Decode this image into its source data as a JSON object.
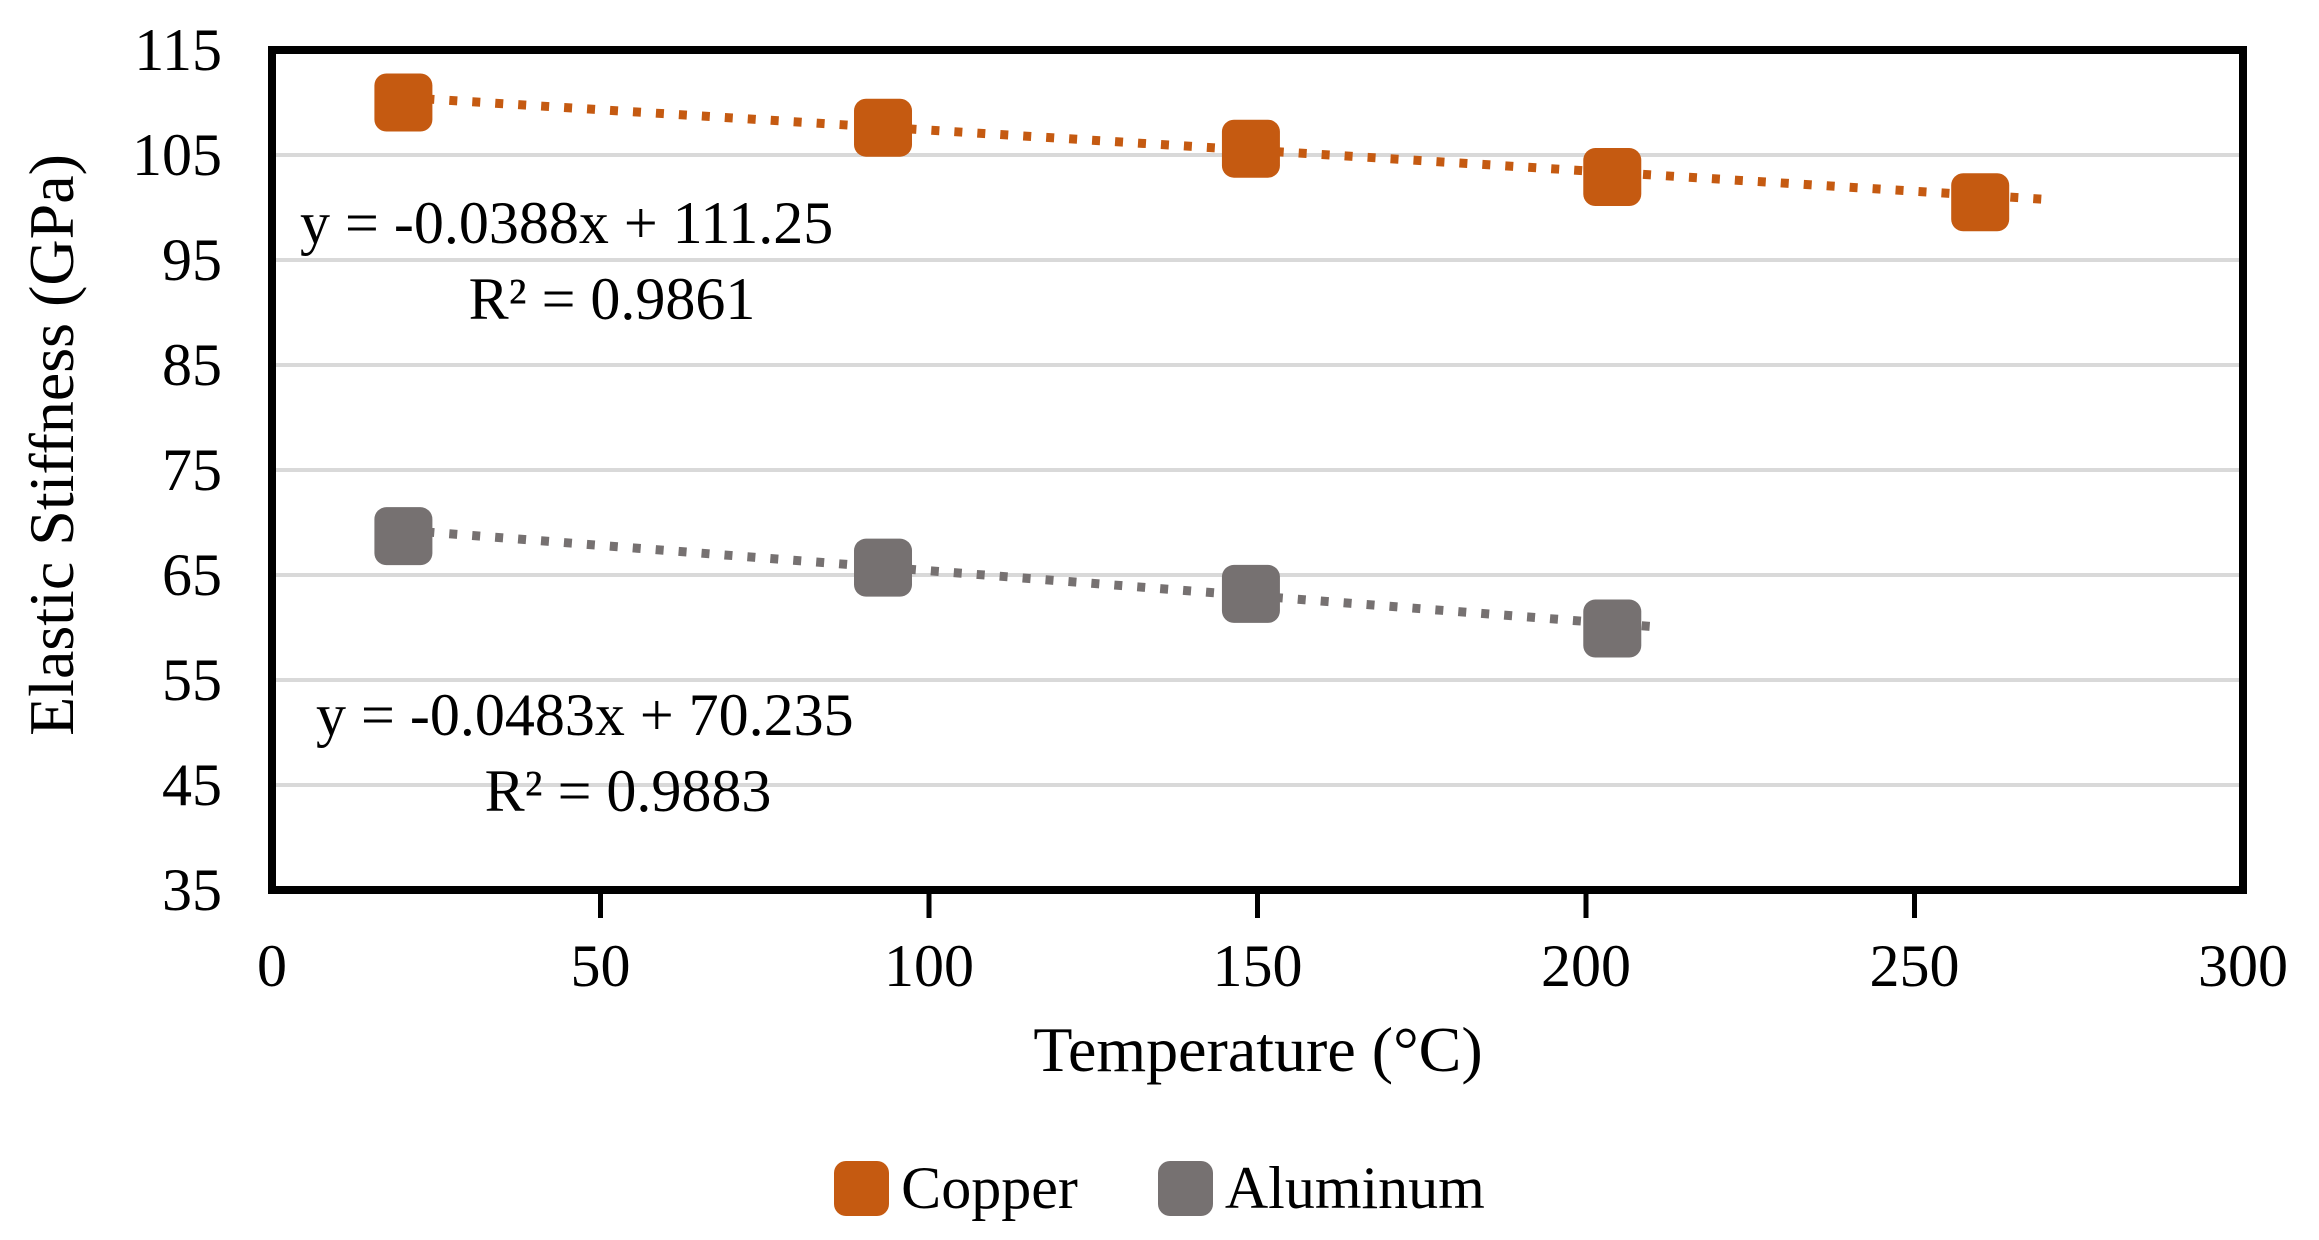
{
  "chart_data": {
    "type": "scatter",
    "title": "",
    "xlabel": "Temperature (°C)",
    "ylabel": "Elastic Stiffness (GPa)",
    "xlim": [
      0,
      300
    ],
    "ylim": [
      35,
      115
    ],
    "xticks": [
      0,
      50,
      100,
      150,
      200,
      250,
      300
    ],
    "yticks": [
      115,
      105,
      95,
      85,
      75,
      65,
      55,
      45,
      35
    ],
    "gridlines_y": [
      45,
      55,
      65,
      75,
      85,
      95,
      105
    ],
    "grid": "horizontal-only",
    "legend_position": "bottom",
    "series": [
      {
        "name": "Copper",
        "color": "#C55A11",
        "marker": "rounded-square",
        "points": [
          [
            20,
            110.0
          ],
          [
            93,
            107.6
          ],
          [
            149,
            105.6
          ],
          [
            204,
            102.9
          ],
          [
            260,
            100.5
          ]
        ],
        "trendline": {
          "type": "linear-dotted",
          "equation": "y = -0.0388x + 111.25",
          "r_squared": "R² = 0.9861",
          "slope": -0.0388,
          "intercept": 111.25,
          "x_range": [
            20,
            270
          ]
        }
      },
      {
        "name": "Aluminum",
        "color": "#767171",
        "marker": "rounded-square",
        "points": [
          [
            20,
            68.7
          ],
          [
            93,
            65.7
          ],
          [
            149,
            63.2
          ],
          [
            204,
            59.9
          ]
        ],
        "trendline": {
          "type": "linear-dotted",
          "equation": "y = -0.0483x + 70.235",
          "r_squared": "R² = 0.9883",
          "slope": -0.0483,
          "intercept": 70.235,
          "x_range": [
            20,
            211
          ]
        }
      }
    ],
    "colors": {
      "gridline": "#D9D9D9",
      "frame": "#000000",
      "text": "#000000"
    }
  }
}
